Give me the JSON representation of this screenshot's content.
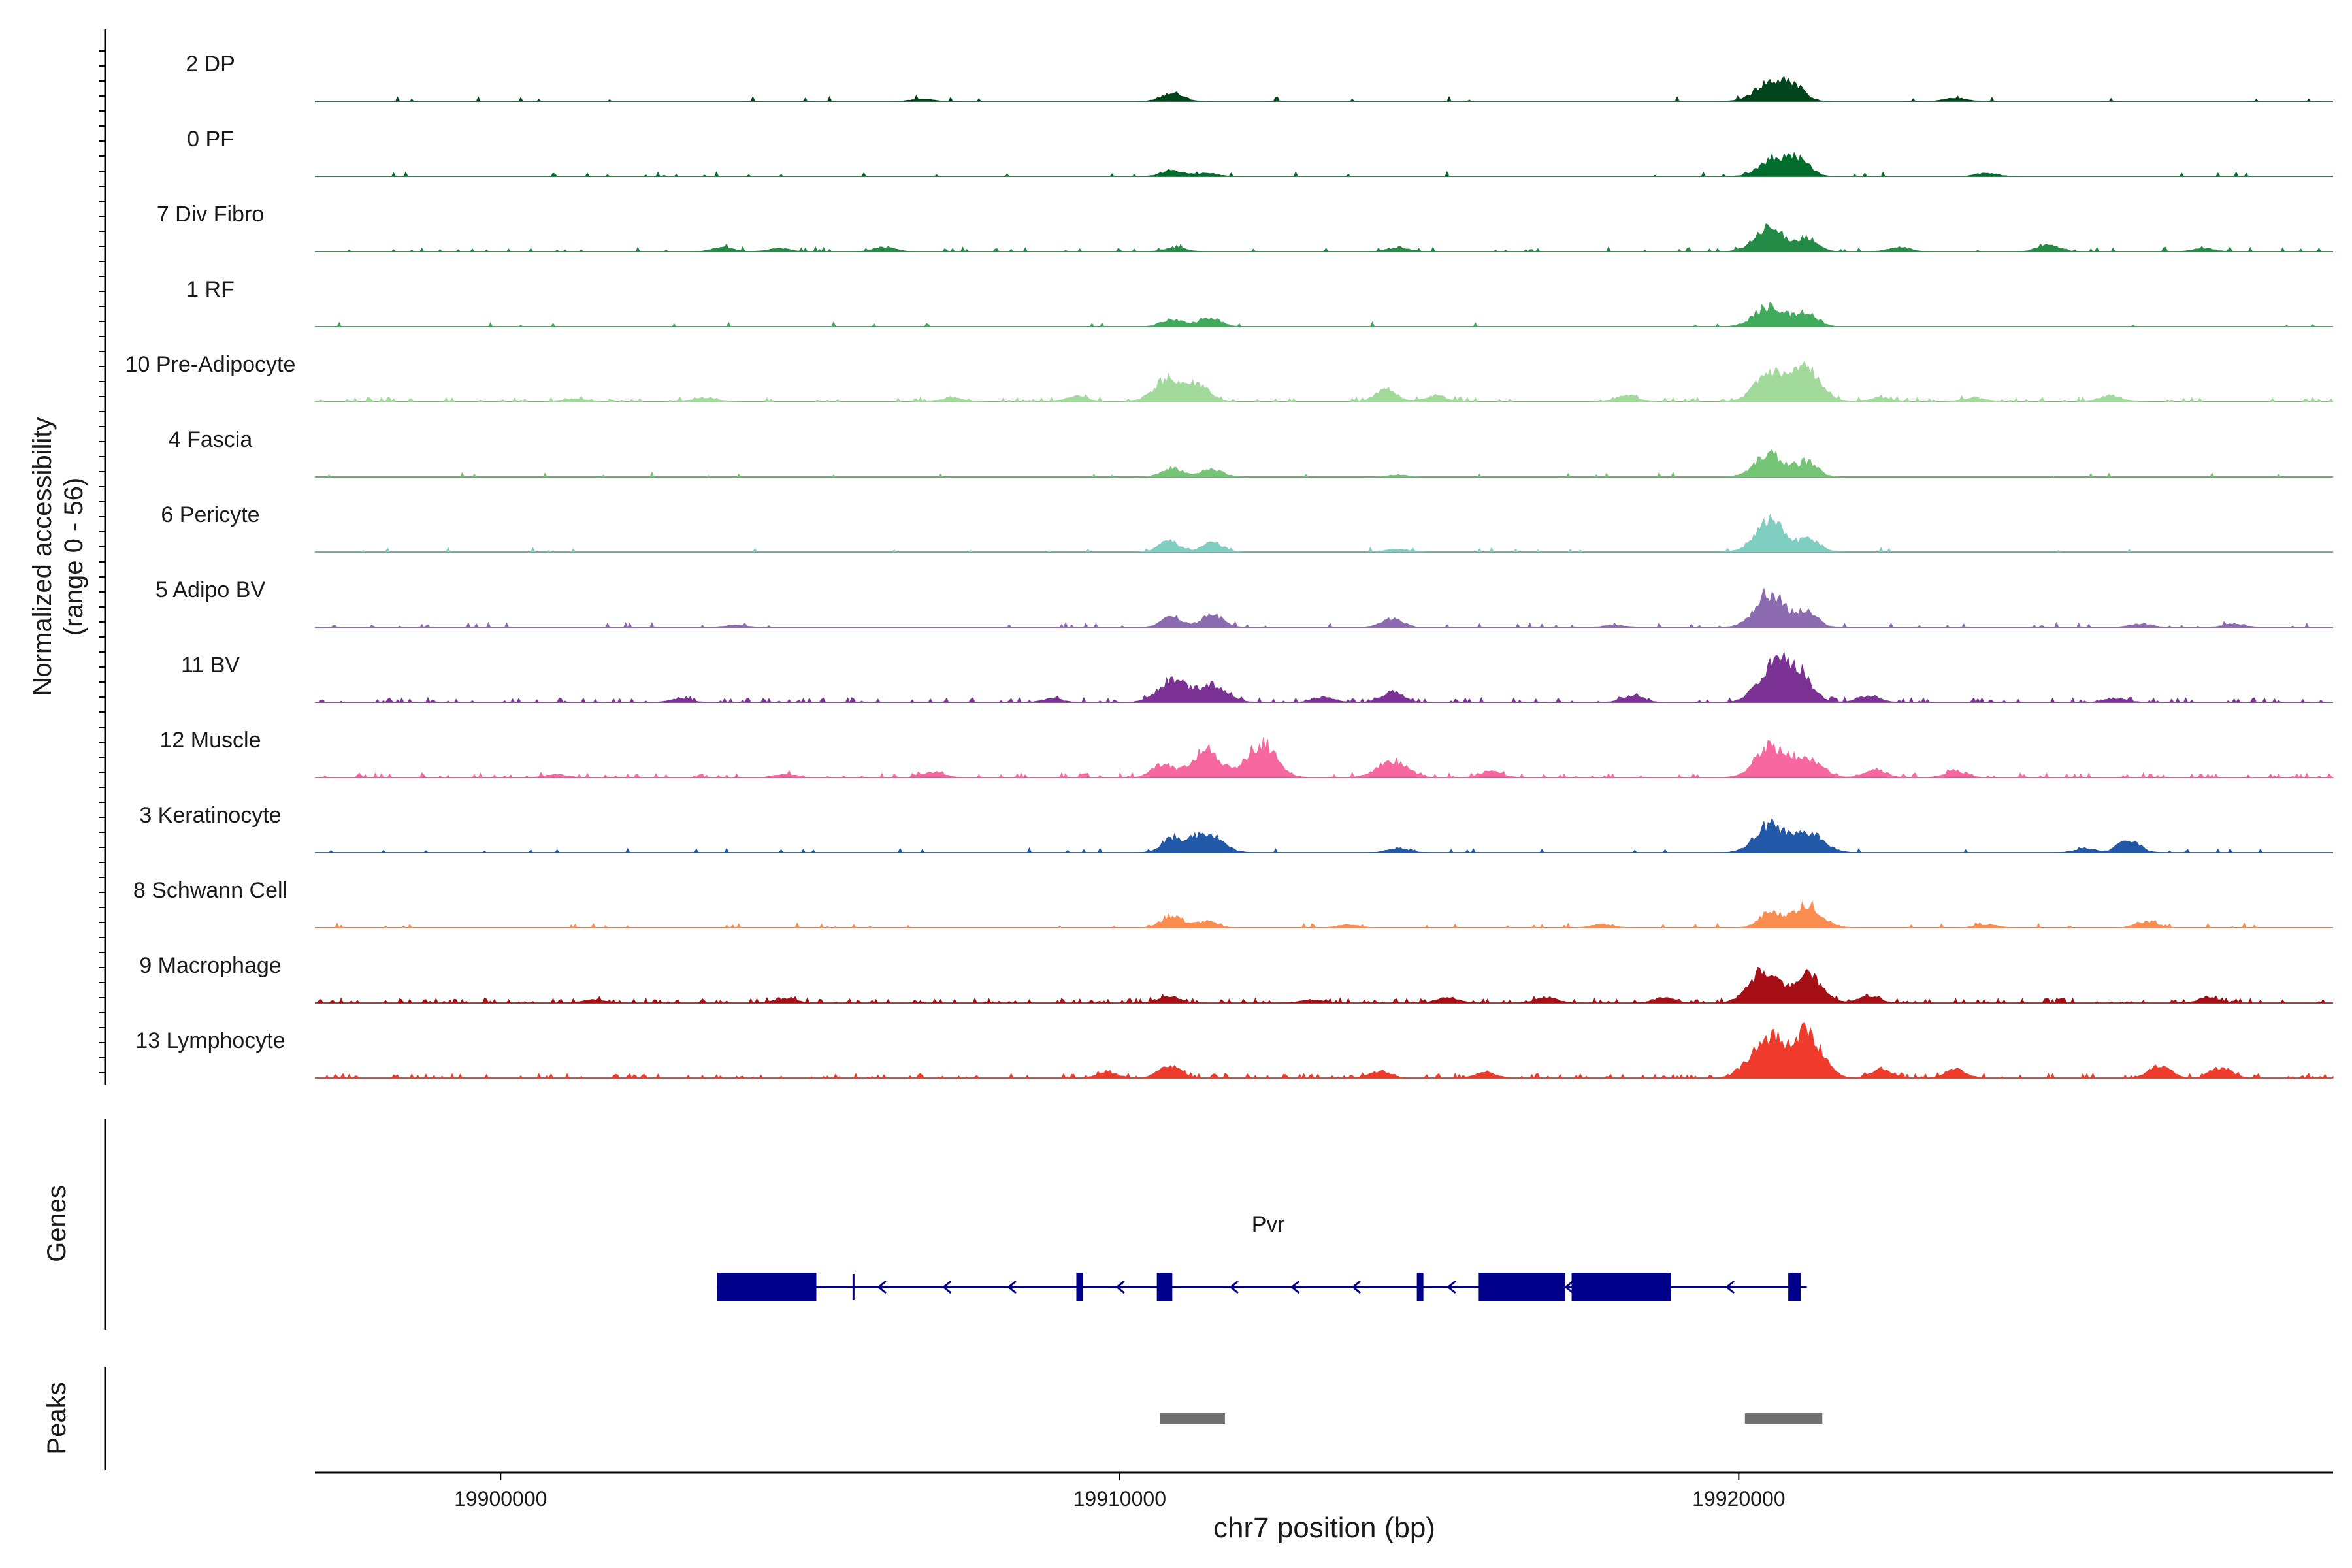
{
  "chart_data": {
    "type": "area",
    "title": "",
    "ylabel_line1": "Normalized accessibility",
    "ylabel_line2": "(range 0 - 56)",
    "ylim": [
      0,
      56
    ],
    "xlabel": "chr7 position (bp)",
    "xlim": [
      19897000,
      19929600
    ],
    "x_ticks": [
      19900000,
      19910000,
      19920000
    ],
    "x_tick_labels": [
      "19900000",
      "19910000",
      "19920000"
    ],
    "tracks": [
      {
        "name": "2 DP",
        "color": "#00441b",
        "peaks": [
          [
            19910850,
            8
          ],
          [
            19920500,
            18
          ],
          [
            19920900,
            14
          ],
          [
            19923500,
            3
          ],
          [
            19906800,
            2
          ]
        ],
        "noise": 0.03
      },
      {
        "name": "0 PF",
        "color": "#006d2c",
        "peaks": [
          [
            19910850,
            6
          ],
          [
            19911400,
            3
          ],
          [
            19920600,
            18
          ],
          [
            19921000,
            13
          ],
          [
            19924000,
            3
          ]
        ],
        "noise": 0.04
      },
      {
        "name": "7 Div Fibro",
        "color": "#238b45",
        "peaks": [
          [
            19903600,
            4
          ],
          [
            19904500,
            3
          ],
          [
            19906200,
            4
          ],
          [
            19910900,
            4
          ],
          [
            19914500,
            4
          ],
          [
            19920500,
            22
          ],
          [
            19921100,
            12
          ],
          [
            19922600,
            4
          ],
          [
            19925000,
            6
          ],
          [
            19927500,
            3
          ]
        ],
        "noise": 0.1
      },
      {
        "name": "1 RF",
        "color": "#41ab5d",
        "peaks": [
          [
            19910850,
            7
          ],
          [
            19911450,
            9
          ],
          [
            19920500,
            20
          ],
          [
            19921100,
            14
          ]
        ],
        "noise": 0.03
      },
      {
        "name": "10 Pre-Adipocyte",
        "color": "#a1d99b",
        "peaks": [
          [
            19901200,
            3
          ],
          [
            19903300,
            4
          ],
          [
            19907300,
            4
          ],
          [
            19909300,
            5
          ],
          [
            19910800,
            22
          ],
          [
            19911300,
            14
          ],
          [
            19914300,
            12
          ],
          [
            19915100,
            6
          ],
          [
            19918200,
            6
          ],
          [
            19920500,
            26
          ],
          [
            19921100,
            30
          ],
          [
            19922300,
            4
          ],
          [
            19923800,
            4
          ],
          [
            19926000,
            6
          ]
        ],
        "noise": 0.12
      },
      {
        "name": "4 Fascia",
        "color": "#74c476",
        "peaks": [
          [
            19910850,
            8
          ],
          [
            19911500,
            7
          ],
          [
            19914500,
            2
          ],
          [
            19920500,
            22
          ],
          [
            19921100,
            14
          ]
        ],
        "noise": 0.03
      },
      {
        "name": "6 Pericyte",
        "color": "#80cdc1",
        "peaks": [
          [
            19910800,
            10
          ],
          [
            19911500,
            9
          ],
          [
            19914500,
            3
          ],
          [
            19920500,
            30
          ],
          [
            19921150,
            12
          ]
        ],
        "noise": 0.04
      },
      {
        "name": "5 Adipo BV",
        "color": "#8c6bb1",
        "peaks": [
          [
            19903800,
            2
          ],
          [
            19910850,
            10
          ],
          [
            19911500,
            12
          ],
          [
            19914400,
            8
          ],
          [
            19918000,
            2
          ],
          [
            19920500,
            32
          ],
          [
            19921100,
            14
          ],
          [
            19926500,
            3
          ],
          [
            19928000,
            3
          ]
        ],
        "noise": 0.06
      },
      {
        "name": "11 BV",
        "color": "#7b3294",
        "peaks": [
          [
            19902900,
            3
          ],
          [
            19908900,
            3
          ],
          [
            19910850,
            20
          ],
          [
            19911500,
            16
          ],
          [
            19913300,
            5
          ],
          [
            19914400,
            10
          ],
          [
            19918300,
            6
          ],
          [
            19920500,
            26
          ],
          [
            19920900,
            32
          ],
          [
            19922100,
            6
          ],
          [
            19926100,
            4
          ]
        ],
        "noise": 0.16
      },
      {
        "name": "12 Muscle",
        "color": "#f768a1",
        "peaks": [
          [
            19900900,
            3
          ],
          [
            19904600,
            3
          ],
          [
            19907000,
            5
          ],
          [
            19910700,
            12
          ],
          [
            19911400,
            26
          ],
          [
            19912300,
            32
          ],
          [
            19914400,
            16
          ],
          [
            19916000,
            6
          ],
          [
            19920500,
            30
          ],
          [
            19921100,
            18
          ],
          [
            19922200,
            8
          ],
          [
            19923500,
            6
          ]
        ],
        "noise": 0.16
      },
      {
        "name": "3 Keratinocyte",
        "color": "#2158a7",
        "peaks": [
          [
            19910850,
            14
          ],
          [
            19911400,
            20
          ],
          [
            19914500,
            4
          ],
          [
            19920500,
            26
          ],
          [
            19921150,
            18
          ],
          [
            19925600,
            4
          ],
          [
            19926300,
            12
          ]
        ],
        "noise": 0.05
      },
      {
        "name": "8 Schwann Cell",
        "color": "#fb8d50",
        "peaks": [
          [
            19910850,
            12
          ],
          [
            19911400,
            6
          ],
          [
            19913700,
            3
          ],
          [
            19917800,
            3
          ],
          [
            19920500,
            14
          ],
          [
            19921100,
            22
          ],
          [
            19924000,
            3
          ],
          [
            19926600,
            6
          ]
        ],
        "noise": 0.04
      },
      {
        "name": "9 Macrophage",
        "color": "#a50f15",
        "peaks": [
          [
            19901500,
            3
          ],
          [
            19904600,
            4
          ],
          [
            19910800,
            6
          ],
          [
            19913100,
            3
          ],
          [
            19915300,
            5
          ],
          [
            19916900,
            5
          ],
          [
            19918800,
            5
          ],
          [
            19920400,
            30
          ],
          [
            19921100,
            26
          ],
          [
            19922100,
            6
          ],
          [
            19927600,
            5
          ]
        ],
        "noise": 0.22
      },
      {
        "name": "13 Lymphocyte",
        "color": "#ef3b2c",
        "peaks": [
          [
            19909800,
            5
          ],
          [
            19910800,
            12
          ],
          [
            19914200,
            6
          ],
          [
            19915900,
            5
          ],
          [
            19920100,
            6
          ],
          [
            19920500,
            36
          ],
          [
            19921100,
            42
          ],
          [
            19922300,
            8
          ],
          [
            19923500,
            8
          ],
          [
            19926800,
            12
          ],
          [
            19927800,
            10
          ]
        ],
        "noise": 0.2
      }
    ],
    "genes_label": "Genes",
    "gene": {
      "name": "Pvr",
      "start": 19903500,
      "end": 19921100,
      "strand": "-",
      "exons": [
        [
          19903500,
          19905100
        ],
        [
          19909300,
          19909400
        ],
        [
          19910600,
          19910850
        ],
        [
          19914800,
          19914900
        ],
        [
          19915800,
          19917200
        ],
        [
          19917300,
          19918900
        ],
        [
          19920800,
          19921000
        ]
      ],
      "tss": 19905700
    },
    "peaks_label": "Peaks",
    "peaks": [
      [
        19910650,
        19911700
      ],
      [
        19920100,
        19921350
      ]
    ]
  }
}
